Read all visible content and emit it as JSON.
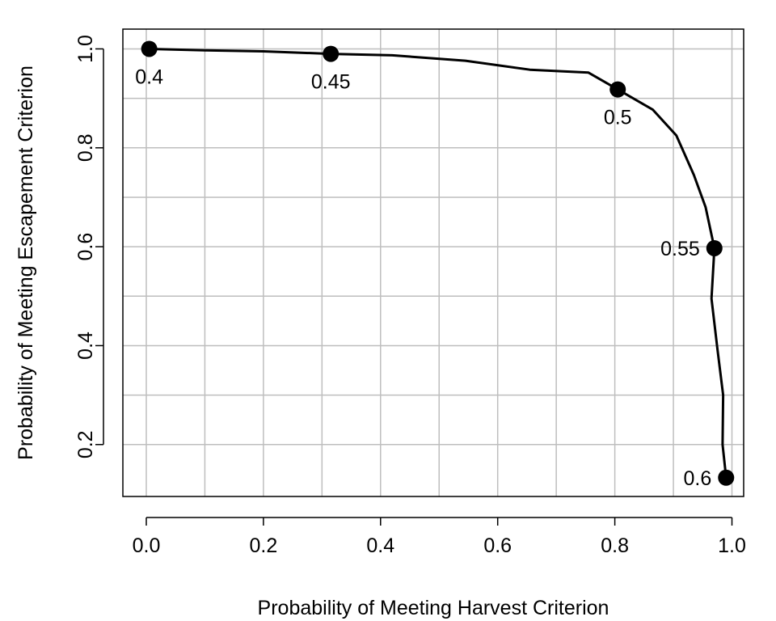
{
  "chart_data": {
    "type": "line",
    "title": "",
    "xlabel": "Probability of Meeting Harvest Criterion",
    "ylabel": "Probability of Meeting Escapement Criterion",
    "xlim": [
      -0.04,
      1.02
    ],
    "ylim": [
      0.095,
      1.04
    ],
    "xticks": [
      0.0,
      0.2,
      0.4,
      0.6,
      0.8,
      1.0
    ],
    "xtick_labels": [
      "0.0",
      "0.2",
      "0.4",
      "0.6",
      "0.8",
      "1.0"
    ],
    "yticks": [
      0.2,
      0.4,
      0.6,
      0.8,
      1.0
    ],
    "ytick_labels": [
      "0.2",
      "0.4",
      "0.6",
      "0.8",
      "1.0"
    ],
    "grid": true,
    "curve": {
      "x": [
        0.005,
        0.1,
        0.2,
        0.315,
        0.42,
        0.545,
        0.655,
        0.755,
        0.805,
        0.865,
        0.905,
        0.935,
        0.955,
        0.97,
        0.965,
        0.975,
        0.985,
        0.984,
        0.99
      ],
      "y": [
        1.0,
        0.997,
        0.995,
        0.99,
        0.987,
        0.976,
        0.958,
        0.952,
        0.918,
        0.877,
        0.825,
        0.745,
        0.68,
        0.597,
        0.495,
        0.395,
        0.3,
        0.2,
        0.133
      ]
    },
    "points": [
      {
        "x": 0.005,
        "y": 1.0,
        "label": "0.4",
        "label_pos": "below"
      },
      {
        "x": 0.315,
        "y": 0.99,
        "label": "0.45",
        "label_pos": "below"
      },
      {
        "x": 0.805,
        "y": 0.918,
        "label": "0.5",
        "label_pos": "below"
      },
      {
        "x": 0.97,
        "y": 0.597,
        "label": "0.55",
        "label_pos": "left"
      },
      {
        "x": 0.99,
        "y": 0.133,
        "label": "0.6",
        "label_pos": "left"
      }
    ],
    "colors": {
      "line": "#000000",
      "grid": "#bebebe",
      "axis": "#000000",
      "point": "#000000"
    }
  }
}
